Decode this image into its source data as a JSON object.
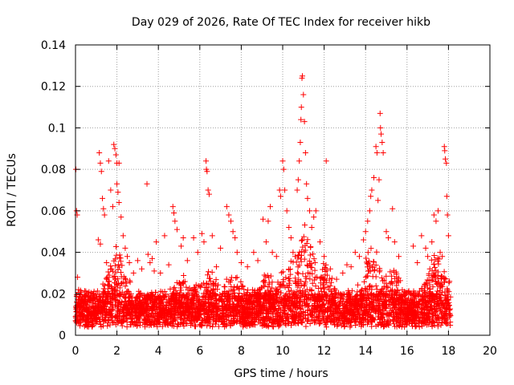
{
  "chart_data": {
    "type": "scatter",
    "title": "Day 029 of 2026, Rate Of TEC Index for receiver hikb",
    "xlabel": "GPS time / hours",
    "ylabel": "ROTI / TECUs",
    "xlim": [
      0,
      20
    ],
    "ylim": [
      0,
      0.14
    ],
    "xticks": [
      "0",
      "2",
      "4",
      "6",
      "8",
      "10",
      "12",
      "14",
      "16",
      "18",
      "20"
    ],
    "yticks": [
      "0",
      "0.02",
      "0.04",
      "0.06",
      "0.08",
      "0.1",
      "0.12",
      "0.14"
    ],
    "grid": true,
    "marker": "+",
    "color": "#ff0000",
    "series": [
      {
        "name": "ROTI",
        "points": [
          [
            0.02,
            0.08
          ],
          [
            0.05,
            0.06
          ],
          [
            0.08,
            0.058
          ],
          [
            0.1,
            0.028
          ],
          [
            0.15,
            0.022
          ],
          [
            0.2,
            0.014
          ],
          [
            0.3,
            0.012
          ],
          [
            0.5,
            0.015
          ],
          [
            0.7,
            0.011
          ],
          [
            0.9,
            0.013
          ],
          [
            1.15,
            0.088
          ],
          [
            1.2,
            0.083
          ],
          [
            1.25,
            0.079
          ],
          [
            1.3,
            0.066
          ],
          [
            1.35,
            0.061
          ],
          [
            1.1,
            0.046
          ],
          [
            1.2,
            0.044
          ],
          [
            1.4,
            0.058
          ],
          [
            1.5,
            0.035
          ],
          [
            1.6,
            0.084
          ],
          [
            1.7,
            0.07
          ],
          [
            1.8,
            0.062
          ],
          [
            1.85,
            0.092
          ],
          [
            1.9,
            0.09
          ],
          [
            1.95,
            0.087
          ],
          [
            2.0,
            0.083
          ],
          [
            2.1,
            0.083
          ],
          [
            2.0,
            0.073
          ],
          [
            2.05,
            0.069
          ],
          [
            2.1,
            0.064
          ],
          [
            2.2,
            0.057
          ],
          [
            2.3,
            0.048
          ],
          [
            2.4,
            0.042
          ],
          [
            2.5,
            0.038
          ],
          [
            2.6,
            0.035
          ],
          [
            2.8,
            0.03
          ],
          [
            3.0,
            0.036
          ],
          [
            3.2,
            0.032
          ],
          [
            3.45,
            0.073
          ],
          [
            3.5,
            0.039
          ],
          [
            3.6,
            0.035
          ],
          [
            3.7,
            0.037
          ],
          [
            3.8,
            0.031
          ],
          [
            3.9,
            0.045
          ],
          [
            4.1,
            0.03
          ],
          [
            4.3,
            0.048
          ],
          [
            4.5,
            0.034
          ],
          [
            4.7,
            0.062
          ],
          [
            4.75,
            0.059
          ],
          [
            4.8,
            0.055
          ],
          [
            4.9,
            0.051
          ],
          [
            5.1,
            0.043
          ],
          [
            5.2,
            0.047
          ],
          [
            5.4,
            0.036
          ],
          [
            5.7,
            0.047
          ],
          [
            5.9,
            0.04
          ],
          [
            6.1,
            0.049
          ],
          [
            6.2,
            0.045
          ],
          [
            6.3,
            0.084
          ],
          [
            6.32,
            0.08
          ],
          [
            6.35,
            0.079
          ],
          [
            6.4,
            0.07
          ],
          [
            6.45,
            0.068
          ],
          [
            6.6,
            0.048
          ],
          [
            6.8,
            0.033
          ],
          [
            7.0,
            0.042
          ],
          [
            7.3,
            0.062
          ],
          [
            7.4,
            0.058
          ],
          [
            7.5,
            0.055
          ],
          [
            7.6,
            0.05
          ],
          [
            7.7,
            0.047
          ],
          [
            7.8,
            0.04
          ],
          [
            8.0,
            0.035
          ],
          [
            8.3,
            0.033
          ],
          [
            8.6,
            0.04
          ],
          [
            8.8,
            0.036
          ],
          [
            9.05,
            0.056
          ],
          [
            9.2,
            0.045
          ],
          [
            9.3,
            0.055
          ],
          [
            9.4,
            0.062
          ],
          [
            9.5,
            0.04
          ],
          [
            9.7,
            0.038
          ],
          [
            9.85,
            0.07
          ],
          [
            9.9,
            0.067
          ],
          [
            10.0,
            0.084
          ],
          [
            10.05,
            0.08
          ],
          [
            10.1,
            0.07
          ],
          [
            10.2,
            0.06
          ],
          [
            10.3,
            0.052
          ],
          [
            10.4,
            0.047
          ],
          [
            10.5,
            0.04
          ],
          [
            10.6,
            0.038
          ],
          [
            10.7,
            0.07
          ],
          [
            10.75,
            0.075
          ],
          [
            10.8,
            0.084
          ],
          [
            10.85,
            0.093
          ],
          [
            10.88,
            0.104
          ],
          [
            10.9,
            0.11
          ],
          [
            10.93,
            0.124
          ],
          [
            10.95,
            0.125
          ],
          [
            11.0,
            0.116
          ],
          [
            11.05,
            0.103
          ],
          [
            11.1,
            0.088
          ],
          [
            11.15,
            0.073
          ],
          [
            11.2,
            0.066
          ],
          [
            11.3,
            0.06
          ],
          [
            11.4,
            0.052
          ],
          [
            11.5,
            0.057
          ],
          [
            11.6,
            0.06
          ],
          [
            11.8,
            0.045
          ],
          [
            12.0,
            0.038
          ],
          [
            12.1,
            0.084
          ],
          [
            12.3,
            0.032
          ],
          [
            12.6,
            0.027
          ],
          [
            12.9,
            0.03
          ],
          [
            13.1,
            0.034
          ],
          [
            13.3,
            0.033
          ],
          [
            13.5,
            0.04
          ],
          [
            13.7,
            0.038
          ],
          [
            13.9,
            0.046
          ],
          [
            14.0,
            0.05
          ],
          [
            14.1,
            0.055
          ],
          [
            14.2,
            0.06
          ],
          [
            14.25,
            0.067
          ],
          [
            14.3,
            0.07
          ],
          [
            14.4,
            0.076
          ],
          [
            14.5,
            0.091
          ],
          [
            14.55,
            0.088
          ],
          [
            14.6,
            0.065
          ],
          [
            14.65,
            0.075
          ],
          [
            14.7,
            0.107
          ],
          [
            14.72,
            0.1
          ],
          [
            14.75,
            0.097
          ],
          [
            14.8,
            0.093
          ],
          [
            14.85,
            0.088
          ],
          [
            15.0,
            0.05
          ],
          [
            15.1,
            0.047
          ],
          [
            15.3,
            0.061
          ],
          [
            15.4,
            0.045
          ],
          [
            15.6,
            0.038
          ],
          [
            16.3,
            0.043
          ],
          [
            16.5,
            0.035
          ],
          [
            16.7,
            0.048
          ],
          [
            16.9,
            0.042
          ],
          [
            17.0,
            0.038
          ],
          [
            17.1,
            0.032
          ],
          [
            17.2,
            0.045
          ],
          [
            17.3,
            0.058
          ],
          [
            17.4,
            0.055
          ],
          [
            17.5,
            0.06
          ],
          [
            17.6,
            0.04
          ],
          [
            17.7,
            0.038
          ],
          [
            17.8,
            0.091
          ],
          [
            17.82,
            0.089
          ],
          [
            17.85,
            0.085
          ],
          [
            17.9,
            0.083
          ],
          [
            17.92,
            0.067
          ],
          [
            17.95,
            0.058
          ],
          [
            18.0,
            0.048
          ],
          [
            18.05,
            0.026
          ]
        ],
        "envelope": {
          "baseline_range": [
            0.004,
            0.022
          ],
          "x_range": [
            0,
            18.1
          ],
          "peak_hours": [
            [
              2.0,
              0.045
            ],
            [
              5.3,
              0.03
            ],
            [
              6.5,
              0.032
            ],
            [
              7.6,
              0.03
            ],
            [
              9.2,
              0.032
            ],
            [
              10.3,
              0.042
            ],
            [
              11.1,
              0.055
            ],
            [
              12.0,
              0.035
            ],
            [
              14.3,
              0.045
            ],
            [
              15.2,
              0.035
            ],
            [
              17.4,
              0.04
            ]
          ]
        }
      }
    ]
  }
}
